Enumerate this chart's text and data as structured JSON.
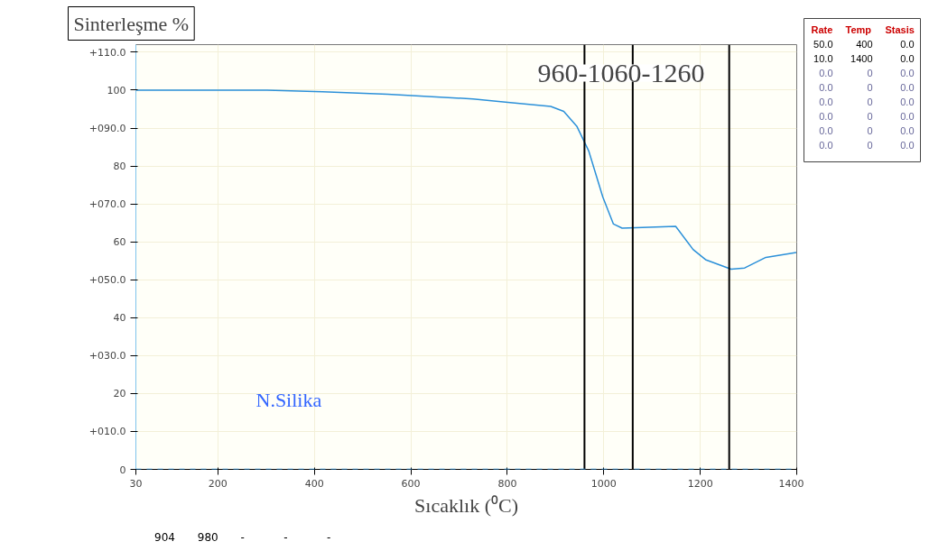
{
  "chart_data": [
    {
      "type": "line",
      "ylabel": "Sinterleşme %",
      "xlabel": "Sıcaklık (⁰C)",
      "x": [
        30,
        302,
        417,
        552,
        729,
        801,
        890,
        917,
        944,
        969,
        998,
        1020,
        1038,
        1149,
        1185,
        1211,
        1264,
        1292,
        1336,
        1399
      ],
      "series": [
        {
          "name": "N.Silika",
          "color": "#2b90d9",
          "values": [
            100,
            100,
            99.6,
            98.9,
            97.7,
            96.8,
            95.7,
            94.4,
            90.5,
            83.9,
            71.8,
            64.7,
            63.6,
            64.1,
            58.0,
            55.3,
            52.8,
            53.1,
            55.9,
            57.2
          ]
        }
      ],
      "xlim": [
        30,
        1400
      ],
      "xticks": [
        30,
        200,
        400,
        600,
        800,
        1000,
        1200,
        1400
      ],
      "ylim": [
        0,
        112
      ],
      "yticks": [
        {
          "value": 110,
          "label": "+110.0"
        },
        {
          "value": 100,
          "label": "100"
        },
        {
          "value": 90,
          "label": "+090.0"
        },
        {
          "value": 80,
          "label": "80"
        },
        {
          "value": 70,
          "label": "+070.0"
        },
        {
          "value": 60,
          "label": "60"
        },
        {
          "value": 50,
          "label": "+050.0"
        },
        {
          "value": 40,
          "label": "40"
        },
        {
          "value": 30,
          "label": "+030.0"
        },
        {
          "value": 20,
          "label": "20"
        },
        {
          "value": 10,
          "label": "+010.0"
        },
        {
          "value": 0,
          "label": "0"
        }
      ],
      "grid": true,
      "marker": "none",
      "line_style": "solid",
      "ref_lines": [
        {
          "axis": "x",
          "value": 960,
          "label": null,
          "color": "#000000"
        },
        {
          "axis": "x",
          "value": 1060,
          "label": null,
          "color": "#000000"
        },
        {
          "axis": "x",
          "value": 1260,
          "label": null,
          "color": "#000000"
        },
        {
          "axis": "y",
          "value": 0,
          "label": null,
          "color": "#2b90d9",
          "line_style": "dashed"
        }
      ],
      "annotations": [
        "960-1060-1260",
        "904",
        "980",
        "-",
        "-",
        "-"
      ]
    },
    {
      "type": "other",
      "annotations": [
        "Rate Temp Stasis",
        "50.0 400 0.0",
        "10.0 1400 0.0",
        "0.0 0 0.0",
        "0.0 0 0.0",
        "0.0 0 0.0",
        "0.0 0 0.0",
        "0.0 0 0.0",
        "0.0 0 0.0"
      ]
    }
  ]
}
